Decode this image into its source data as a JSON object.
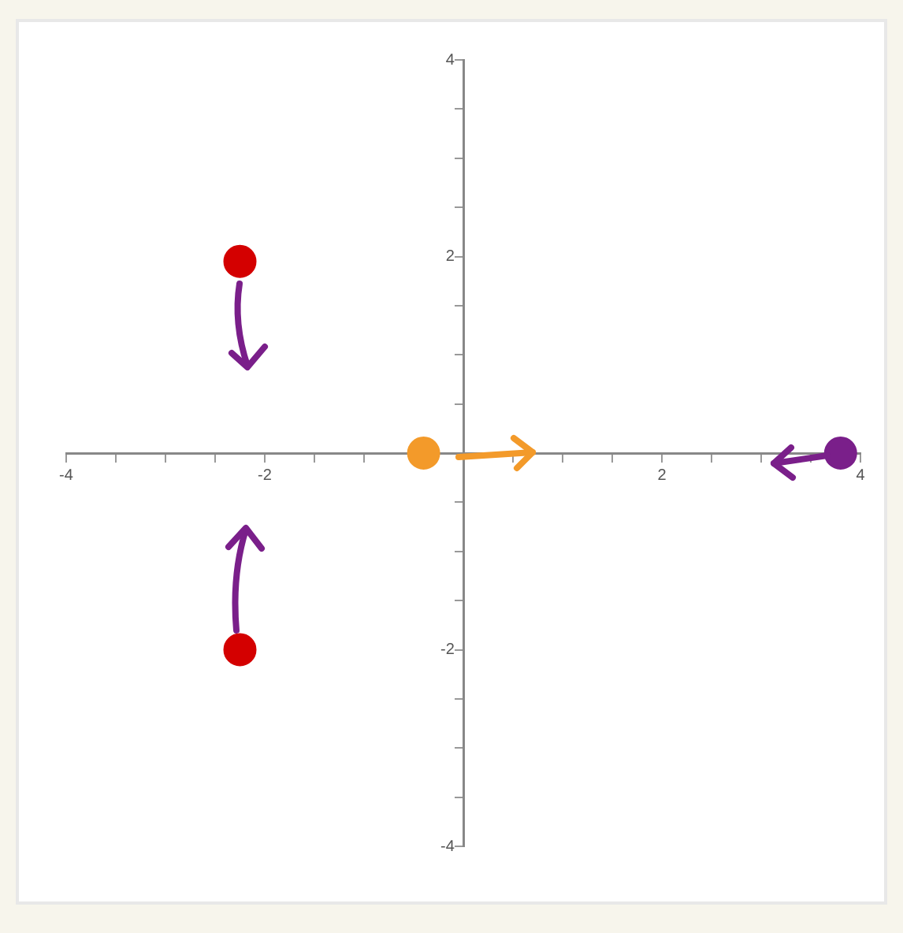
{
  "chart_data": {
    "type": "scatter",
    "marker": "circle",
    "grid": false,
    "legend": false,
    "xlim": [
      -4,
      4
    ],
    "ylim": [
      -4,
      4
    ],
    "xticks": [
      -4,
      {
        "value": -3.5,
        "label": null
      },
      {
        "value": -3,
        "label": null
      },
      {
        "value": -2.5,
        "label": null
      },
      -2,
      {
        "value": -1.5,
        "label": null
      },
      {
        "value": -1,
        "label": null
      },
      {
        "value": -0.5,
        "label": null
      },
      {
        "value": 0,
        "label": null
      },
      {
        "value": 0.5,
        "label": null
      },
      {
        "value": 1,
        "label": null
      },
      {
        "value": 1.5,
        "label": null
      },
      2,
      {
        "value": 2.5,
        "label": null
      },
      {
        "value": 3,
        "label": null
      },
      {
        "value": 3.5,
        "label": null
      },
      4
    ],
    "yticks": [
      -4,
      {
        "value": -3.5,
        "label": null
      },
      {
        "value": -3,
        "label": null
      },
      {
        "value": -2.5,
        "label": null
      },
      -2,
      {
        "value": -1.5,
        "label": null
      },
      {
        "value": -1,
        "label": null
      },
      {
        "value": -0.5,
        "label": null
      },
      {
        "value": 0,
        "label": null
      },
      {
        "value": 0.5,
        "label": null
      },
      {
        "value": 1,
        "label": null
      },
      {
        "value": 1.5,
        "label": null
      },
      2,
      {
        "value": 2.5,
        "label": null
      },
      {
        "value": 3,
        "label": null
      },
      {
        "value": 3.5,
        "label": null
      },
      4
    ],
    "series": [
      {
        "color": "#d40000",
        "x": [
          -2.25,
          -2.25
        ],
        "values": [
          1.95,
          -2.0
        ]
      },
      {
        "color": "#f39a2a",
        "x": [
          -0.4
        ],
        "values": [
          0
        ]
      },
      {
        "color": "#7a1f8a",
        "x": [
          3.8
        ],
        "values": [
          0
        ]
      }
    ]
  }
}
